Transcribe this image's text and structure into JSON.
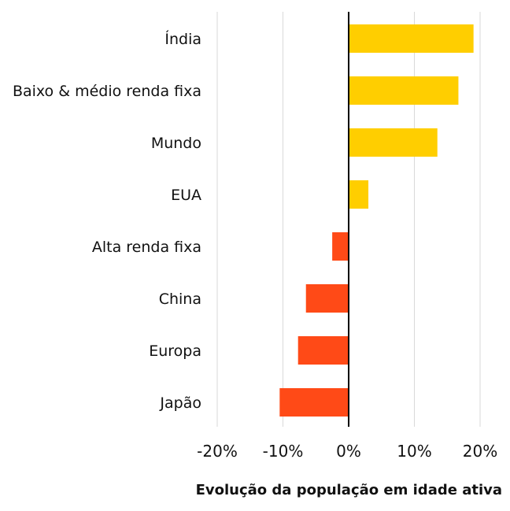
{
  "chart_data": {
    "type": "bar",
    "orientation": "horizontal",
    "categories": [
      "Índia",
      "Baixo & médio renda fixa",
      "Mundo",
      "EUA",
      "Alta renda fixa",
      "China",
      "Europa",
      "Japão"
    ],
    "values": [
      19,
      16.7,
      13.5,
      3,
      -2.5,
      -6.5,
      -7.7,
      -10.5
    ],
    "xlabel": "Evolução da população em idade ativa",
    "xlim": [
      -20,
      20
    ],
    "xticks": [
      -20,
      -10,
      0,
      10,
      20
    ],
    "xtick_labels": [
      "-20%",
      "-10%",
      "0%",
      "10%",
      "20%"
    ],
    "grid": "vertical",
    "colors": {
      "positive": "#FFCE00",
      "negative": "#FF4A17",
      "grid": "#d9d9d9",
      "zero_line": "#000000"
    }
  }
}
